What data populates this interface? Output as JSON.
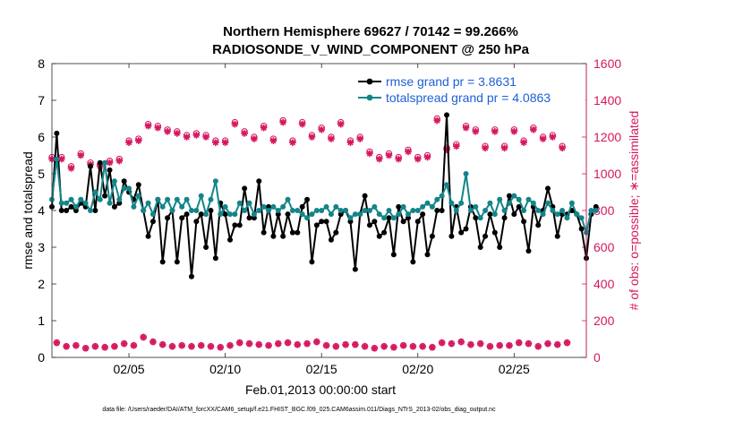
{
  "chart_data": {
    "type": "line",
    "title": "Northern Hemisphere 69627 / 70142 = 99.266%",
    "subtitle": "RADIOSONDE_V_WIND_COMPONENT @ 250 hPa",
    "xlabel": "Feb.01,2013 00:00:00 start",
    "ylabel_left": "rmse and totalspread",
    "ylabel_right": "# of obs: o=possible; ∗=assimilated",
    "x_ticks": [
      "02/05",
      "02/10",
      "02/15",
      "02/20",
      "02/25"
    ],
    "x_tick_days": [
      5,
      10,
      15,
      20,
      25
    ],
    "xlim": [
      1,
      28.75
    ],
    "ylim_left": [
      0,
      8
    ],
    "yticks_left": [
      "0",
      "1",
      "2",
      "3",
      "4",
      "5",
      "6",
      "7",
      "8"
    ],
    "ylim_right": [
      0,
      1600
    ],
    "yticks_right": [
      "0",
      "200",
      "400",
      "600",
      "800",
      "1000",
      "1200",
      "1400",
      "1600"
    ],
    "legend_position": "top-right",
    "grid": false,
    "x_start_day": 1,
    "x_step_days": 0.25,
    "series": [
      {
        "name": "rmse grand pr = 3.8631",
        "color": "#000000",
        "axis": "left",
        "values": [
          4.1,
          6.1,
          4.0,
          4.0,
          4.1,
          4.0,
          4.2,
          4.1,
          5.2,
          4.0,
          5.3,
          4.4,
          5.1,
          4.1,
          4.2,
          4.8,
          4.5,
          4.3,
          4.7,
          4.0,
          3.3,
          3.7,
          4.3,
          2.6,
          3.8,
          4.0,
          2.6,
          3.8,
          3.9,
          2.2,
          3.7,
          3.9,
          3.0,
          4.0,
          2.7,
          4.2,
          3.9,
          3.2,
          3.6,
          3.6,
          4.6,
          3.8,
          3.8,
          4.8,
          3.4,
          4.1,
          3.3,
          3.9,
          3.3,
          3.9,
          3.4,
          3.4,
          4.1,
          4.3,
          2.6,
          3.6,
          3.7,
          3.7,
          3.2,
          3.4,
          3.9,
          4.0,
          3.7,
          2.4,
          3.9,
          4.4,
          3.6,
          3.7,
          3.3,
          3.4,
          3.8,
          2.8,
          4.1,
          3.7,
          3.8,
          2.6,
          3.7,
          3.9,
          2.8,
          3.3,
          4.0,
          4.0,
          6.6,
          3.3,
          4.1,
          3.4,
          3.5,
          4.1,
          3.8,
          3.0,
          3.3,
          3.9,
          3.4,
          3.0,
          3.8,
          4.4,
          3.9,
          4.1,
          3.7,
          2.9,
          4.1,
          3.6,
          4.0,
          4.6,
          4.1,
          3.3,
          3.9,
          3.9,
          4.0,
          3.9,
          3.5,
          2.7,
          3.9,
          4.1
        ]
      },
      {
        "name": "totalspread grand pr = 4.0863",
        "color": "#13858a",
        "axis": "left",
        "values": [
          4.3,
          5.4,
          4.2,
          4.2,
          4.3,
          4.1,
          4.3,
          4.2,
          4.0,
          4.5,
          4.3,
          5.3,
          4.2,
          4.8,
          4.3,
          4.6,
          4.6,
          4.1,
          4.4,
          4.0,
          4.2,
          3.9,
          4.3,
          4.1,
          4.3,
          4.0,
          4.3,
          4.1,
          4.3,
          4.0,
          4.0,
          4.4,
          3.9,
          4.3,
          4.8,
          3.9,
          4.1,
          3.9,
          3.9,
          4.2,
          4.0,
          4.2,
          3.9,
          4.0,
          4.1,
          4.0,
          4.1,
          4.0,
          4.1,
          4.3,
          4.0,
          4.0,
          3.9,
          3.8,
          3.9,
          4.0,
          4.0,
          4.1,
          3.9,
          4.1,
          4.0,
          4.0,
          3.8,
          3.9,
          3.9,
          4.0,
          4.0,
          4.1,
          3.9,
          3.8,
          4.0,
          3.8,
          3.9,
          4.1,
          3.9,
          4.0,
          4.0,
          4.1,
          4.2,
          4.1,
          4.3,
          4.4,
          4.7,
          4.2,
          4.0,
          4.2,
          5.0,
          4.0,
          4.1,
          3.8,
          4.0,
          4.2,
          3.9,
          4.3,
          4.0,
          4.2,
          4.4,
          4.3,
          4.0,
          4.3,
          4.2,
          4.0,
          3.9,
          4.2,
          4.0,
          3.9,
          4.0,
          3.8,
          4.2,
          3.9,
          3.8,
          3.4,
          4.0,
          4.0
        ]
      },
      {
        "name": "obs possible",
        "color": "#d6175f",
        "axis": "right",
        "marker": "o",
        "values": [
          1090,
          80,
          1090,
          60,
          1040,
          65,
          1110,
          50,
          1060,
          60,
          1050,
          55,
          1070,
          60,
          1080,
          75,
          1180,
          65,
          1190,
          110,
          1270,
          85,
          1260,
          70,
          1240,
          60,
          1230,
          65,
          1210,
          60,
          1220,
          65,
          1210,
          60,
          1180,
          55,
          1180,
          65,
          1280,
          80,
          1230,
          75,
          1200,
          70,
          1260,
          65,
          1190,
          75,
          1290,
          80,
          1180,
          70,
          1280,
          75,
          1210,
          85,
          1250,
          65,
          1200,
          60,
          1280,
          70,
          1180,
          70,
          1200,
          60,
          1120,
          50,
          1090,
          60,
          1110,
          55,
          1090,
          65,
          1130,
          60,
          1090,
          60,
          1100,
          55,
          1300,
          80,
          1140,
          75,
          1160,
          85,
          1260,
          70,
          1240,
          75,
          1150,
          60,
          1240,
          65,
          1150,
          65,
          1240,
          80,
          1180,
          75,
          1250,
          60,
          1200,
          75,
          1210,
          70,
          1150,
          80
        ]
      },
      {
        "name": "obs assimilated",
        "color": "#d6175f",
        "axis": "right",
        "marker": "*",
        "values": [
          1080,
          80,
          1080,
          60,
          1030,
          65,
          1100,
          50,
          1050,
          60,
          1040,
          55,
          1060,
          60,
          1070,
          75,
          1170,
          65,
          1180,
          110,
          1260,
          85,
          1250,
          70,
          1230,
          60,
          1220,
          65,
          1200,
          60,
          1210,
          65,
          1200,
          60,
          1170,
          55,
          1170,
          65,
          1270,
          80,
          1220,
          75,
          1190,
          70,
          1250,
          65,
          1180,
          75,
          1280,
          80,
          1170,
          70,
          1270,
          75,
          1200,
          85,
          1240,
          65,
          1190,
          60,
          1270,
          70,
          1170,
          70,
          1190,
          60,
          1110,
          50,
          1080,
          60,
          1100,
          55,
          1080,
          65,
          1120,
          60,
          1080,
          60,
          1090,
          55,
          1290,
          80,
          1130,
          75,
          1150,
          85,
          1250,
          70,
          1230,
          75,
          1140,
          60,
          1230,
          65,
          1140,
          65,
          1230,
          80,
          1170,
          75,
          1240,
          60,
          1190,
          75,
          1200,
          70,
          1140,
          80
        ]
      }
    ]
  },
  "footer": "data file: /Users/raeder/DAI/ATM_forcXX/CAM6_setup/f.e21.FHIST_BGC.f09_025.CAM6assim.011/Diags_NTrS_2013-02/obs_diag_output.nc"
}
